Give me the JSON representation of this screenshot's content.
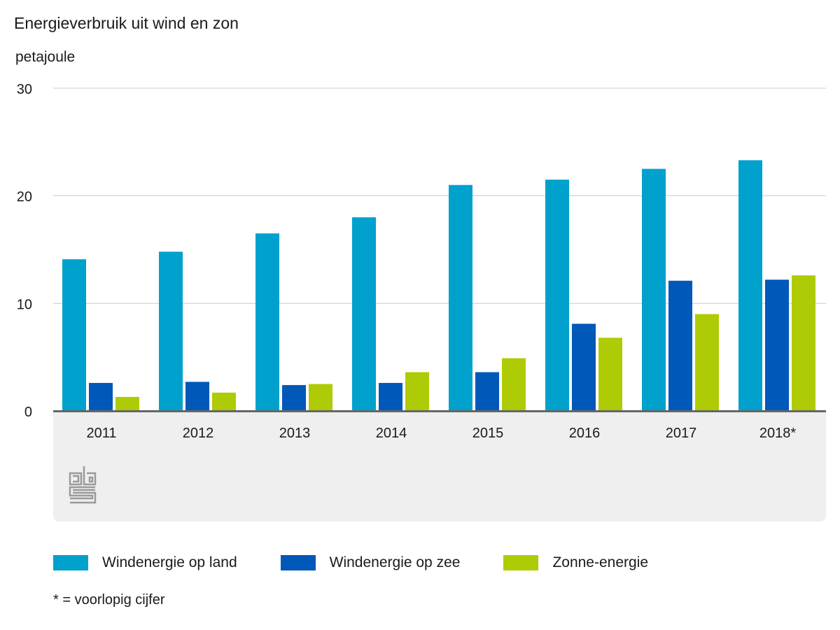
{
  "chart_data": {
    "type": "bar",
    "title": "Energieverbruik uit wind en zon",
    "ylabel": "petajoule",
    "xlabel": "",
    "ylim": [
      0,
      30
    ],
    "yticks": [
      0,
      10,
      20,
      30
    ],
    "grid": true,
    "categories": [
      "2011",
      "2012",
      "2013",
      "2014",
      "2015",
      "2016",
      "2017",
      "2018*"
    ],
    "series": [
      {
        "name": "Windenergie op land",
        "color": "#00a1cd",
        "values": [
          14.1,
          14.8,
          16.5,
          18.0,
          21.0,
          21.5,
          22.5,
          23.3
        ]
      },
      {
        "name": "Windenergie op zee",
        "color": "#0058b8",
        "values": [
          2.6,
          2.7,
          2.4,
          2.6,
          3.6,
          8.1,
          12.1,
          12.2
        ]
      },
      {
        "name": "Zonne-energie",
        "color": "#afcb05",
        "values": [
          1.3,
          1.7,
          2.5,
          3.6,
          4.9,
          6.8,
          9.0,
          12.6
        ]
      }
    ],
    "legend_position": "bottom",
    "footnote": "* = voorlopig cijfer"
  },
  "colors": {
    "grid": "#cccccc",
    "axis": "#666666",
    "panel": "#efefef",
    "logo": "#9a9a9a"
  }
}
